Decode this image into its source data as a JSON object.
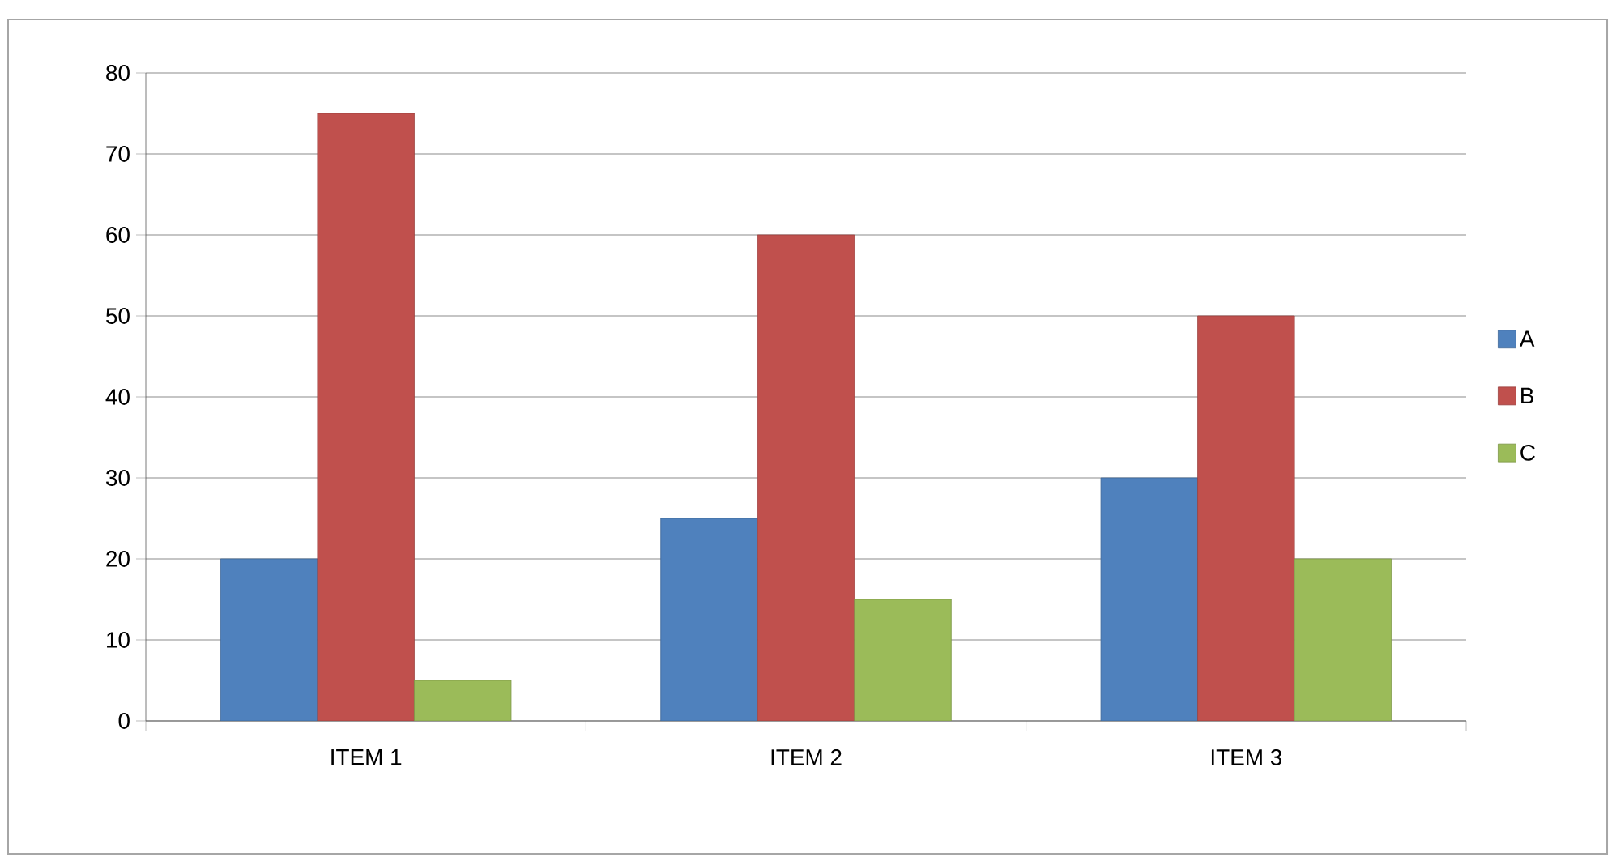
{
  "chart_data": {
    "type": "bar",
    "categories": [
      "ITEM 1",
      "ITEM 2",
      "ITEM 3"
    ],
    "series": [
      {
        "name": "A",
        "color": "#4f81bd",
        "values": [
          20,
          25,
          30
        ]
      },
      {
        "name": "B",
        "color": "#c0504d",
        "values": [
          75,
          60,
          50
        ]
      },
      {
        "name": "C",
        "color": "#9bbb59",
        "values": [
          5,
          15,
          20
        ]
      }
    ],
    "ylim": [
      0,
      80
    ],
    "yticks": [
      0,
      10,
      20,
      30,
      40,
      50,
      60,
      70,
      80
    ],
    "grid": "y",
    "legend": "right"
  }
}
